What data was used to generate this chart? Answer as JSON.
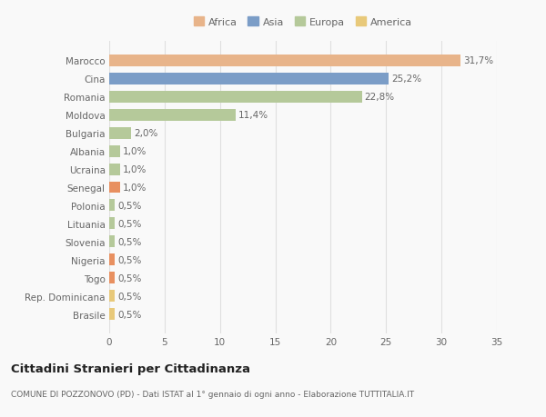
{
  "categories": [
    "Brasile",
    "Rep. Dominicana",
    "Togo",
    "Nigeria",
    "Slovenia",
    "Lituania",
    "Polonia",
    "Senegal",
    "Ucraina",
    "Albania",
    "Bulgaria",
    "Moldova",
    "Romania",
    "Cina",
    "Marocco"
  ],
  "values": [
    0.5,
    0.5,
    0.5,
    0.5,
    0.5,
    0.5,
    0.5,
    1.0,
    1.0,
    1.0,
    2.0,
    11.4,
    22.8,
    25.2,
    31.7
  ],
  "colors": [
    "#e8c97a",
    "#e8c97a",
    "#e89060",
    "#e89060",
    "#b5c99a",
    "#b5c99a",
    "#b5c99a",
    "#e89060",
    "#b5c99a",
    "#b5c99a",
    "#b5c99a",
    "#b5c99a",
    "#b5c99a",
    "#7b9dc7",
    "#e8b48a"
  ],
  "labels": [
    "0,5%",
    "0,5%",
    "0,5%",
    "0,5%",
    "0,5%",
    "0,5%",
    "0,5%",
    "1,0%",
    "1,0%",
    "1,0%",
    "2,0%",
    "11,4%",
    "22,8%",
    "25,2%",
    "31,7%"
  ],
  "legend": [
    {
      "label": "Africa",
      "color": "#e8b48a"
    },
    {
      "label": "Asia",
      "color": "#7b9dc7"
    },
    {
      "label": "Europa",
      "color": "#b5c99a"
    },
    {
      "label": "America",
      "color": "#e8c97a"
    }
  ],
  "xlim": [
    0,
    35
  ],
  "xticks": [
    0,
    5,
    10,
    15,
    20,
    25,
    30,
    35
  ],
  "title": "Cittadini Stranieri per Cittadinanza",
  "subtitle": "COMUNE DI POZZONOVO (PD) - Dati ISTAT al 1° gennaio di ogni anno - Elaborazione TUTTITALIA.IT",
  "bg_color": "#f9f9f9",
  "grid_color": "#e0e0e0",
  "text_color": "#666666"
}
